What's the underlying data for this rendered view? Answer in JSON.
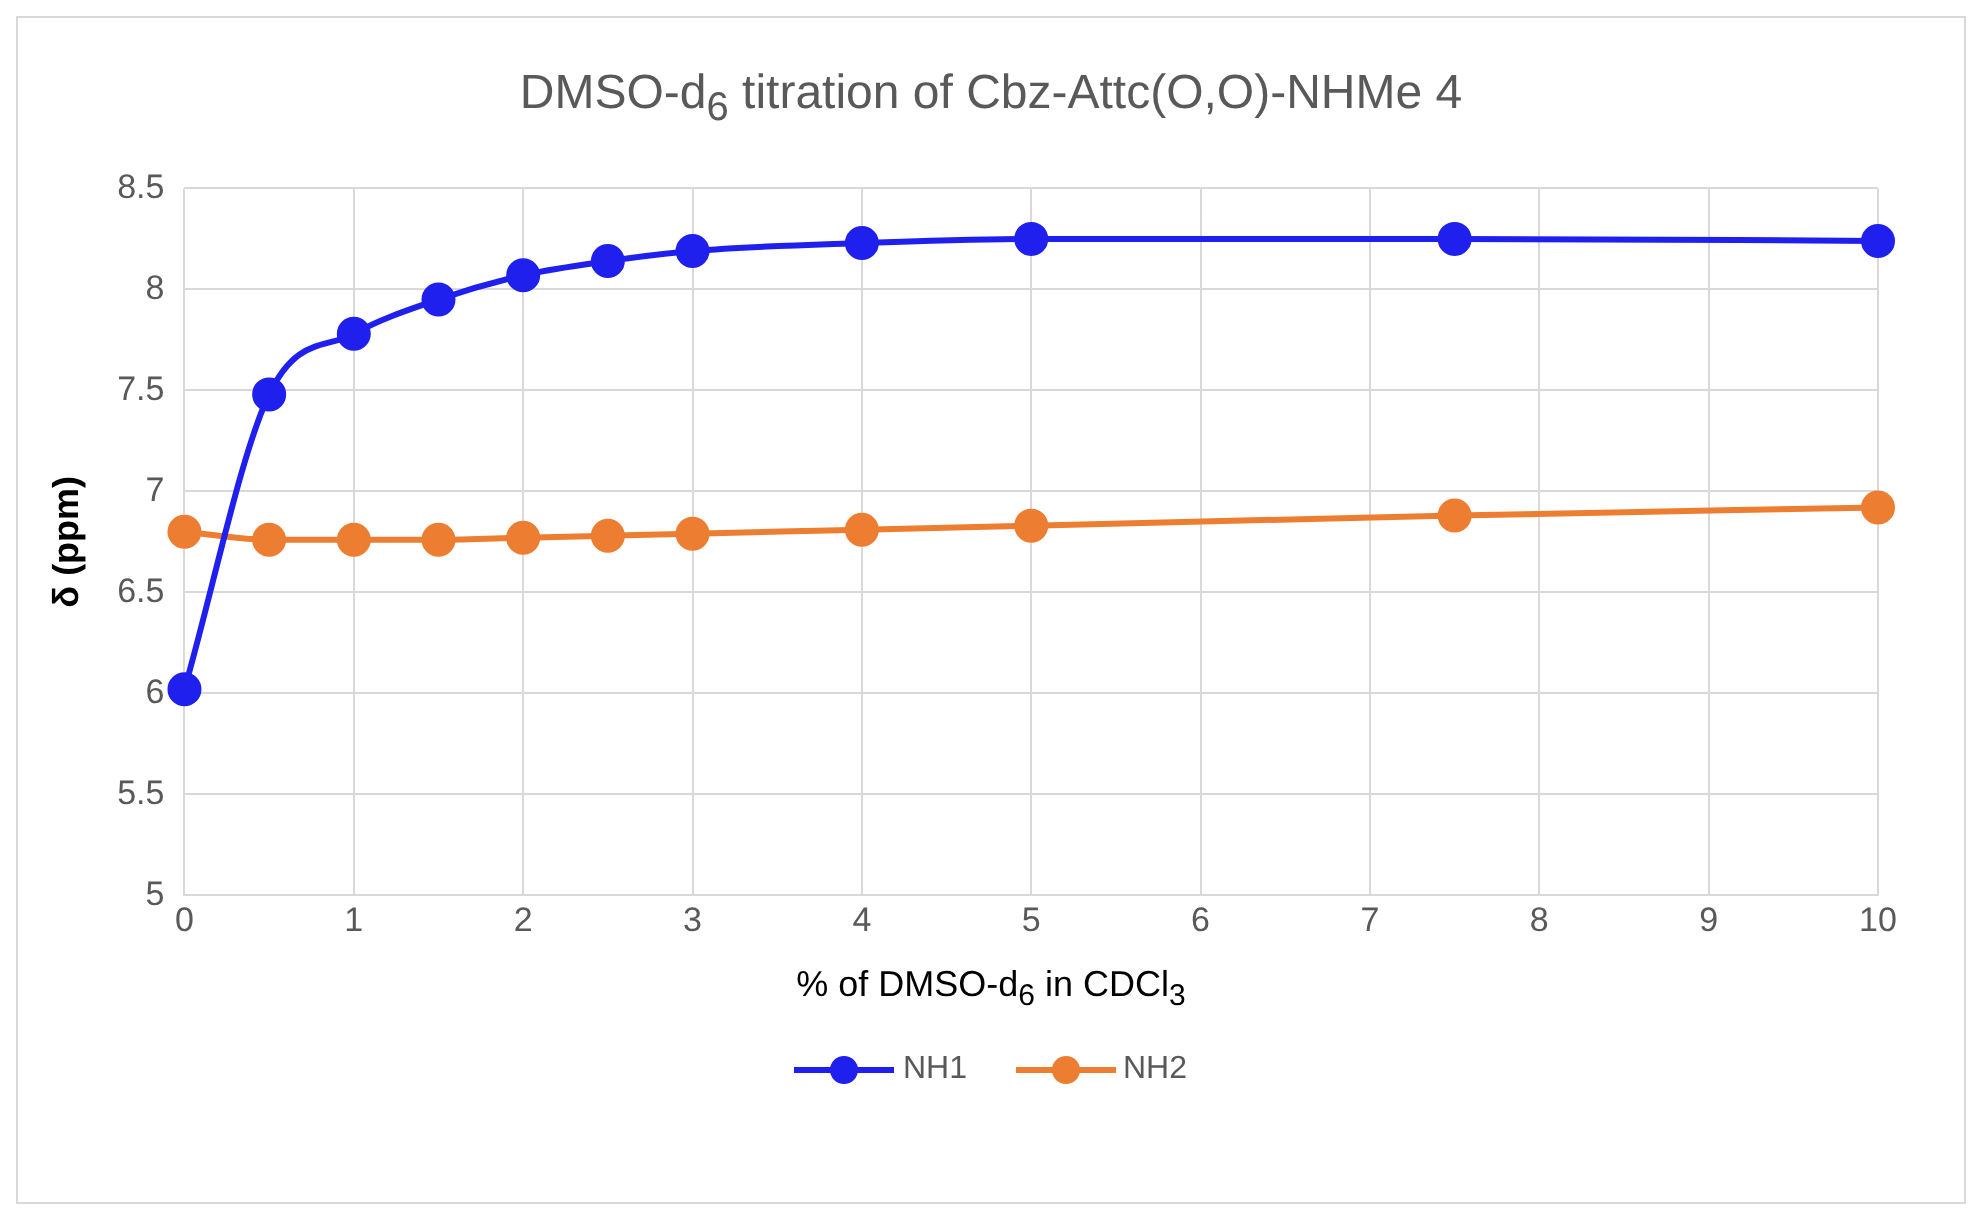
{
  "chart_data": {
    "type": "line",
    "title": "DMSO-d$_{6}$ titration of Cbz-Attc(O,O)-NHMe 4",
    "xlabel": "% of DMSO-d$_{6}$ in CDCl$_{3}$",
    "ylabel": "δ (ppm)",
    "x": [
      0,
      0.5,
      1,
      1.5,
      2,
      2.5,
      3,
      4,
      5,
      7.5,
      10
    ],
    "series": [
      {
        "name": "NH1",
        "color": "#2020ee",
        "values": [
          6.02,
          7.48,
          7.78,
          7.95,
          8.07,
          8.14,
          8.19,
          8.23,
          8.25,
          8.25,
          8.24
        ]
      },
      {
        "name": "NH2",
        "color": "#ed7d31",
        "values": [
          6.8,
          6.76,
          6.76,
          6.76,
          6.77,
          6.78,
          6.79,
          6.81,
          6.83,
          6.88,
          6.92
        ]
      }
    ],
    "xlim": [
      0,
      10
    ],
    "xticks": [
      0,
      1,
      2,
      3,
      4,
      5,
      6,
      7,
      8,
      9,
      10
    ],
    "ylim": [
      5,
      8.5
    ],
    "yticks": [
      5,
      5.5,
      6,
      6.5,
      7,
      7.5,
      8,
      8.5
    ],
    "grid": true,
    "legend": "bottom",
    "marker": "circle",
    "line_style": "solid"
  }
}
